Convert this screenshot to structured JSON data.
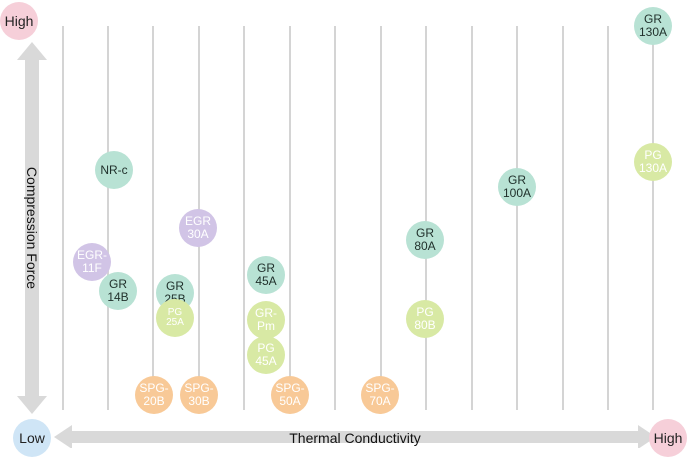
{
  "corners": {
    "high_y": "High",
    "low": "Low",
    "high_x": "High"
  },
  "axes": {
    "y_title": "Compression Force",
    "x_title": "Thermal Conductivity"
  },
  "colors": {
    "teal": "#b8e2d4",
    "purple": "#d1c4e6",
    "lime": "#d8e9a4",
    "orange": "#f8c997",
    "arrow": "#d9d9d9",
    "gridline": "#d4d4d4"
  },
  "products": [
    {
      "line1": "GR",
      "line2": "130A",
      "color": "teal"
    },
    {
      "line1": "PG",
      "line2": "130A",
      "color": "lime"
    },
    {
      "line1": "NR-c",
      "line2": "",
      "color": "teal"
    },
    {
      "line1": "GR",
      "line2": "100A",
      "color": "teal"
    },
    {
      "line1": "EGR",
      "line2": "30A",
      "color": "purple"
    },
    {
      "line1": "GR",
      "line2": "80A",
      "color": "teal"
    },
    {
      "line1": "EGR-",
      "line2": "11F",
      "color": "purple"
    },
    {
      "line1": "GR",
      "line2": "45A",
      "color": "teal"
    },
    {
      "line1": "GR",
      "line2": "14B",
      "color": "teal"
    },
    {
      "line1": "GR",
      "line2": "25B",
      "color": "teal"
    },
    {
      "line1": "PG",
      "line2": "25A",
      "color": "lime"
    },
    {
      "line1": "GR-",
      "line2": "Pm",
      "color": "lime"
    },
    {
      "line1": "PG",
      "line2": "80B",
      "color": "lime"
    },
    {
      "line1": "PG",
      "line2": "45A",
      "color": "lime"
    },
    {
      "line1": "SPG-",
      "line2": "20B",
      "color": "orange"
    },
    {
      "line1": "SPG-",
      "line2": "30B",
      "color": "orange"
    },
    {
      "line1": "SPG-",
      "line2": "50A",
      "color": "orange"
    },
    {
      "line1": "SPG-",
      "line2": "70A",
      "color": "orange"
    }
  ]
}
